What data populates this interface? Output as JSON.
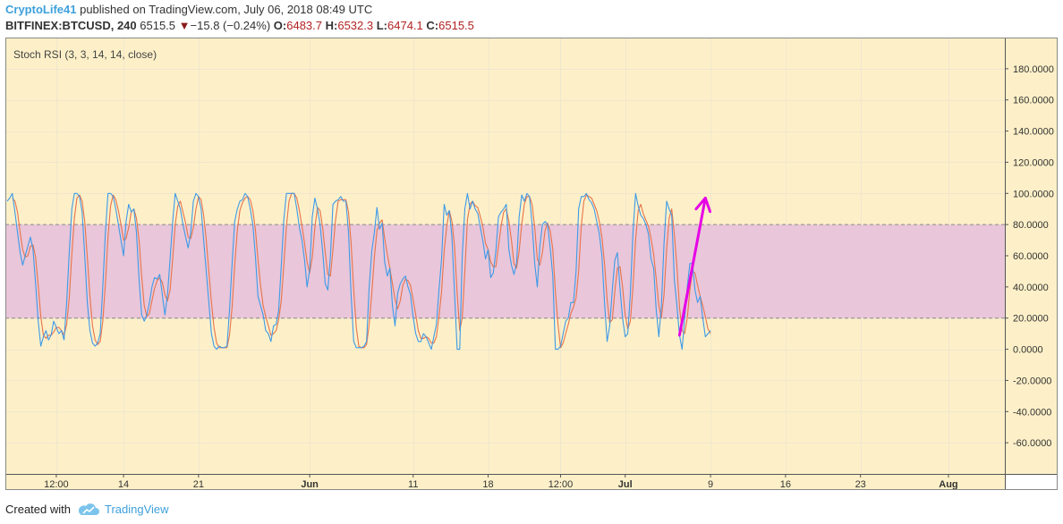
{
  "header": {
    "author": "CryptoLife41",
    "published_text": "published on TradingView.com, July 06, 2018 08:49 UTC",
    "symbol": "BITFINEX:BTCUSD, 240",
    "last": "6515.5",
    "change": "−15.8 (−0.24%)",
    "o_label": "O:",
    "o_value": "6483.7",
    "h_label": "H:",
    "h_value": "6532.3",
    "l_label": "L:",
    "l_value": "6474.1",
    "c_label": "C:",
    "c_value": "6515.5"
  },
  "footer": {
    "created_with": "Created with",
    "brand": "TradingView",
    "brand_icon": "tradingview-cloud-icon"
  },
  "colors": {
    "background": "#fdf0c8",
    "band_fill": "#e9c6d9",
    "k_line": "#3d9ae8",
    "d_line": "#e8734a",
    "arrow": "#e600e6",
    "grid": "#f0e6cc",
    "band_border": "#8c8c8c"
  },
  "chart_data": {
    "type": "line",
    "title": "Stoch RSI (3, 3, 14, 14, close)",
    "x_ticks": [
      "12:00",
      "14",
      "21",
      "Jun",
      "11",
      "18",
      "12:00",
      "Jul",
      "9",
      "16",
      "23",
      "Aug"
    ],
    "x_tick_index": [
      19,
      45,
      74,
      117,
      157,
      186,
      214,
      239,
      272,
      301,
      330,
      364
    ],
    "ylim": [
      -80,
      200
    ],
    "y_ticks": [
      180,
      160,
      140,
      120,
      100,
      80,
      60,
      40,
      20,
      0,
      -20,
      -40,
      -60
    ],
    "y_tick_labels": [
      "180.0000",
      "160.0000",
      "140.0000",
      "120.0000",
      "100.0000",
      "80.0000",
      "60.0000",
      "40.0000",
      "20.0000",
      "0.0000",
      "-20.0000",
      "-40.0000",
      "-60.0000"
    ],
    "bands": {
      "upper": 80,
      "lower": 20
    },
    "grid": true,
    "series": [
      {
        "role": "k",
        "values": [
          95,
          97,
          100,
          88,
          75,
          62,
          54,
          60,
          66,
          72,
          64,
          42,
          18,
          2,
          8,
          12,
          6,
          9,
          18,
          14,
          10,
          12,
          6,
          30,
          62,
          90,
          100,
          100,
          98,
          88,
          60,
          30,
          12,
          4,
          2,
          4,
          10,
          40,
          75,
          100,
          100,
          98,
          90,
          80,
          70,
          60,
          82,
          93,
          88,
          90,
          75,
          45,
          22,
          18,
          22,
          30,
          40,
          46,
          45,
          48,
          35,
          22,
          35,
          58,
          82,
          100,
          95,
          90,
          80,
          72,
          65,
          75,
          95,
          100,
          98,
          90,
          70,
          50,
          30,
          10,
          2,
          0,
          2,
          1,
          1,
          2,
          25,
          55,
          82,
          90,
          95,
          96,
          100,
          98,
          90,
          80,
          60,
          34,
          28,
          22,
          12,
          10,
          5,
          15,
          16,
          25,
          53,
          83,
          100,
          100,
          100,
          100,
          90,
          78,
          70,
          57,
          40,
          51,
          85,
          97,
          90,
          80,
          63,
          42,
          38,
          60,
          93,
          95,
          96,
          98,
          95,
          95,
          75,
          35,
          5,
          1,
          1,
          1,
          2,
          5,
          40,
          63,
          75,
          91,
          77,
          81,
          56,
          47,
          52,
          28,
          15,
          36,
          42,
          45,
          47,
          40,
          35,
          21,
          10,
          5,
          5,
          10,
          8,
          4,
          0,
          8,
          16,
          38,
          58,
          93,
          86,
          89,
          72,
          36,
          0,
          0,
          60,
          90,
          100,
          90,
          95,
          90,
          87,
          78,
          69,
          58,
          64,
          46,
          49,
          63,
          85,
          88,
          90,
          93,
          64,
          54,
          48,
          55,
          85,
          99,
          95,
          100,
          98,
          80,
          55,
          40,
          66,
          80,
          82,
          80,
          65,
          47,
          0,
          0,
          2,
          10,
          18,
          20,
          30,
          30,
          50,
          90,
          98,
          98,
          100,
          96,
          94,
          90,
          82,
          74,
          60,
          30,
          5,
          15,
          38,
          57,
          62,
          39,
          20,
          8,
          10,
          36,
          75,
          100,
          92,
          86,
          84,
          80,
          74,
          58,
          52,
          25,
          8,
          28,
          68,
          95,
          90,
          86,
          45,
          28,
          9,
          0,
          20,
          40,
          55,
          55,
          38,
          30,
          34,
          20,
          8,
          10,
          12
        ]
      },
      {
        "role": "d",
        "values": [
          null,
          null,
          97,
          95,
          88,
          75,
          64,
          59,
          60,
          66,
          67,
          59,
          41,
          21,
          9,
          7,
          9,
          9,
          11,
          14,
          14,
          12,
          9,
          16,
          33,
          61,
          84,
          97,
          99,
          95,
          82,
          59,
          34,
          15,
          6,
          3,
          5,
          18,
          42,
          72,
          92,
          99,
          96,
          89,
          80,
          70,
          71,
          78,
          88,
          90,
          84,
          70,
          47,
          28,
          21,
          23,
          31,
          39,
          44,
          46,
          43,
          35,
          31,
          38,
          58,
          80,
          92,
          95,
          88,
          81,
          72,
          71,
          78,
          90,
          98,
          96,
          86,
          70,
          50,
          30,
          14,
          4,
          1,
          1,
          1,
          1,
          9,
          27,
          54,
          76,
          89,
          94,
          97,
          98,
          96,
          89,
          77,
          58,
          41,
          28,
          21,
          15,
          9,
          10,
          12,
          19,
          31,
          54,
          79,
          95,
          100,
          100,
          97,
          89,
          79,
          68,
          56,
          49,
          59,
          78,
          91,
          89,
          78,
          62,
          48,
          47,
          64,
          83,
          95,
          96,
          96,
          96,
          88,
          68,
          38,
          14,
          2,
          1,
          1,
          3,
          16,
          36,
          59,
          76,
          81,
          83,
          71,
          61,
          52,
          42,
          32,
          26,
          31,
          41,
          45,
          44,
          41,
          32,
          22,
          12,
          7,
          7,
          8,
          7,
          4,
          4,
          8,
          21,
          37,
          63,
          79,
          89,
          82,
          66,
          36,
          12,
          20,
          50,
          83,
          93,
          95,
          92,
          91,
          85,
          78,
          68,
          64,
          56,
          53,
          53,
          66,
          79,
          88,
          90,
          82,
          70,
          55,
          52,
          63,
          80,
          93,
          98,
          98,
          93,
          78,
          58,
          54,
          62,
          76,
          81,
          76,
          64,
          37,
          16,
          1,
          4,
          10,
          16,
          23,
          27,
          33,
          50,
          79,
          95,
          99,
          98,
          97,
          93,
          89,
          82,
          72,
          55,
          32,
          17,
          19,
          37,
          52,
          53,
          40,
          22,
          13,
          18,
          40,
          70,
          89,
          93,
          87,
          83,
          79,
          71,
          61,
          45,
          28,
          20,
          35,
          64,
          84,
          90,
          74,
          53,
          27,
          12,
          10,
          20,
          38,
          50,
          49,
          41,
          34,
          28,
          21,
          13,
          10
        ]
      }
    ],
    "annotations": [
      {
        "type": "arrow",
        "color": "#e600e6",
        "x_from_index": 260,
        "y_from": 9,
        "x_to_index": 270,
        "y_to": 97
      }
    ]
  }
}
